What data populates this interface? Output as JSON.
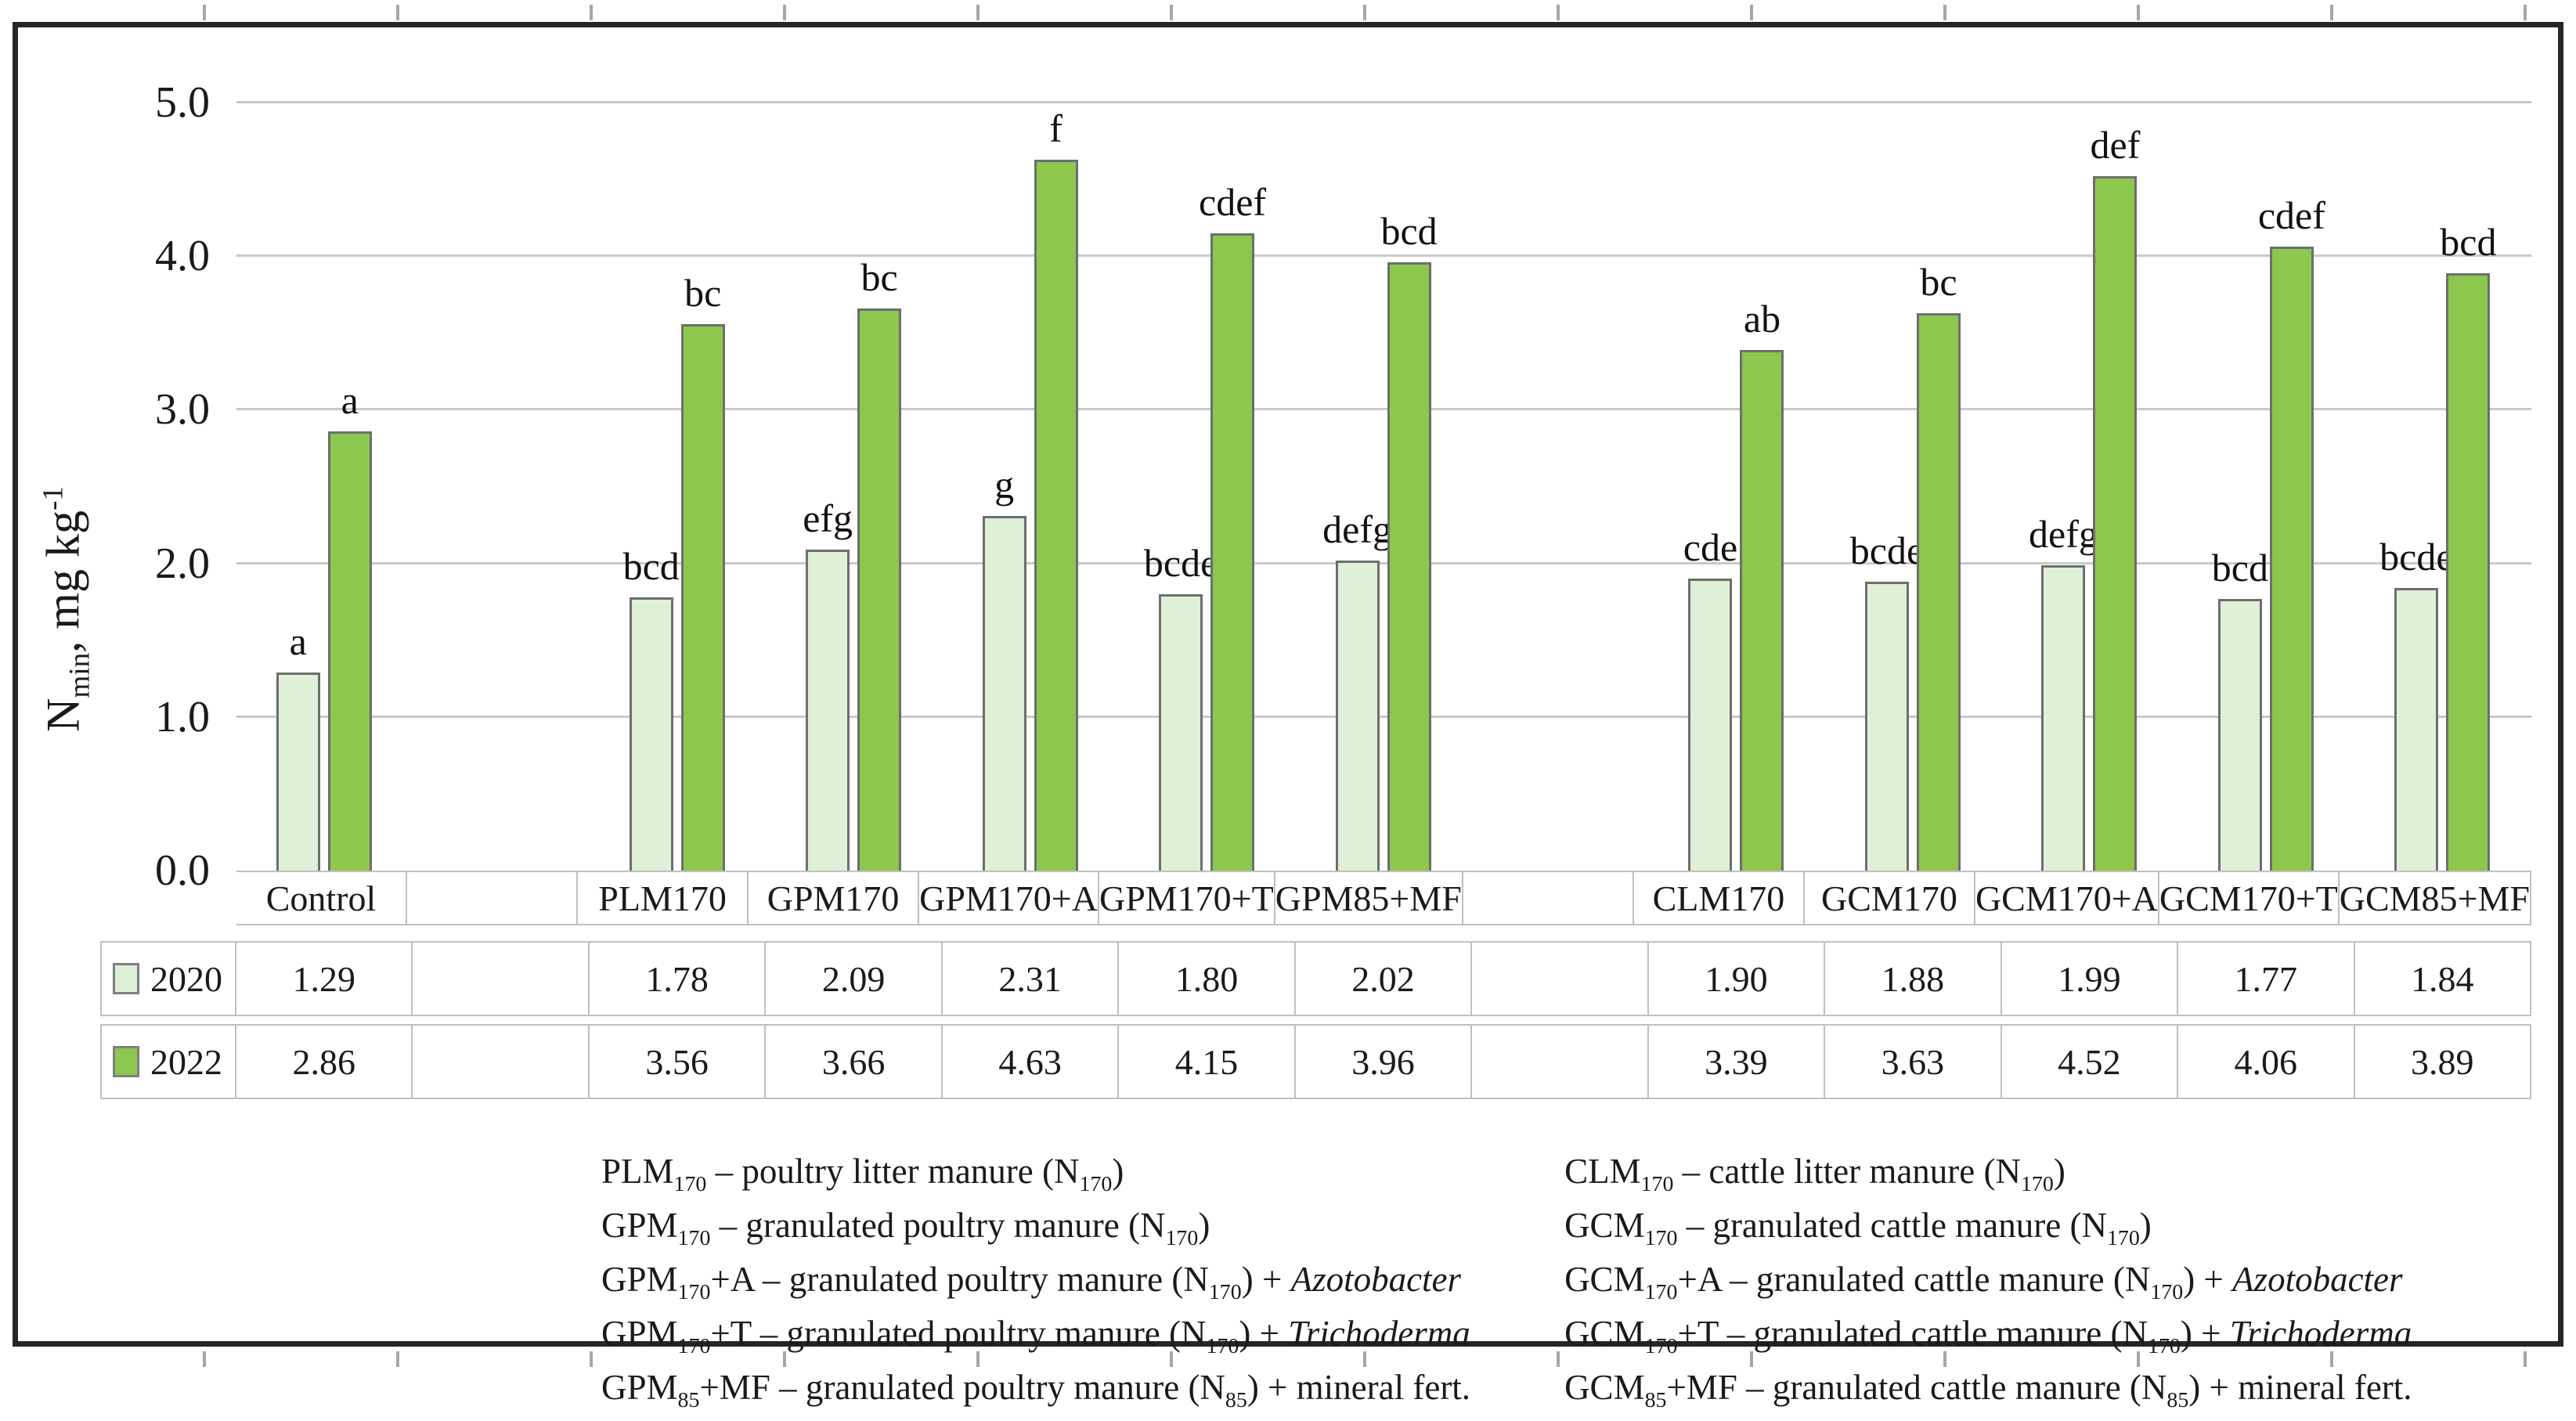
{
  "chart_data": {
    "type": "bar",
    "title": "",
    "ylabel": "Nmin, mg kg-1",
    "ylabel_segments": [
      {
        "t": "N"
      },
      {
        "t": "min",
        "sub": true
      },
      {
        "t": ", mg kg"
      },
      {
        "t": "-1",
        "sup": true
      }
    ],
    "ylim": [
      0,
      5
    ],
    "yticks": [
      0.0,
      1.0,
      2.0,
      3.0,
      4.0,
      5.0
    ],
    "grid": "horizontal",
    "legend_position": "table-left-column",
    "categories": [
      "Control",
      "PLM170",
      "GPM170",
      "GPM170+A",
      "GPM170+T",
      "GPM85+MF",
      "CLM170",
      "GCM170",
      "GCM170+A",
      "GCM170+T",
      "GCM85+MF"
    ],
    "slot_layout": [
      "Control",
      "",
      "PLM170",
      "GPM170",
      "GPM170+A",
      "GPM170+T",
      "GPM85+MF",
      "",
      "CLM170",
      "GCM170",
      "GCM170+A",
      "GCM170+T",
      "GCM85+MF"
    ],
    "series": [
      {
        "name": "2020",
        "color": "#DFF0D8",
        "values": [
          "1.29",
          "1.78",
          "2.09",
          "2.31",
          "1.80",
          "2.02",
          "1.90",
          "1.88",
          "1.99",
          "1.77",
          "1.84"
        ],
        "sig_letters": [
          "a",
          "bcd",
          "efg",
          "g",
          "bcde",
          "defg",
          "cde",
          "bcde",
          "defg",
          "bcd",
          "bcde"
        ]
      },
      {
        "name": "2022",
        "color": "#8CC74E",
        "values": [
          "2.86",
          "3.56",
          "3.66",
          "4.63",
          "4.15",
          "3.96",
          "3.39",
          "3.63",
          "4.52",
          "4.06",
          "3.89"
        ],
        "sig_letters": [
          "a",
          "bc",
          "bc",
          "f",
          "cdef",
          "bcd",
          "ab",
          "bc",
          "def",
          "cdef",
          "bcd"
        ]
      }
    ]
  },
  "colors": {
    "bar_2020": "#DFF0D8",
    "bar_2022": "#8CC74E",
    "bar_border": "#6E6E6E",
    "gridline": "#C9C9C9",
    "table_border": "#C0C0C0",
    "frame_border": "#262626",
    "ruler_tick": "#A6A6A6",
    "text": "#1A1A1A"
  },
  "footnotes": {
    "left": [
      {
        "segments": [
          {
            "t": "PLM"
          },
          {
            "t": "170",
            "sub": true
          },
          {
            "t": " – poultry litter manure (N"
          },
          {
            "t": "170",
            "sub": true
          },
          {
            "t": ")"
          }
        ]
      },
      {
        "segments": [
          {
            "t": "GPM"
          },
          {
            "t": "170",
            "sub": true
          },
          {
            "t": " – granulated poultry manure (N"
          },
          {
            "t": "170",
            "sub": true
          },
          {
            "t": ")"
          }
        ]
      },
      {
        "segments": [
          {
            "t": "GPM"
          },
          {
            "t": "170",
            "sub": true
          },
          {
            "t": "+A – granulated poultry manure (N"
          },
          {
            "t": "170",
            "sub": true
          },
          {
            "t": ") + "
          },
          {
            "t": "Azotobacter",
            "italic": true
          }
        ]
      },
      {
        "segments": [
          {
            "t": "GPM"
          },
          {
            "t": "170",
            "sub": true
          },
          {
            "t": "+T – granulated poultry manure (N"
          },
          {
            "t": "170",
            "sub": true
          },
          {
            "t": ") + "
          },
          {
            "t": "Trichoderma",
            "italic": true
          }
        ]
      },
      {
        "segments": [
          {
            "t": "GPM"
          },
          {
            "t": "85",
            "sub": true
          },
          {
            "t": "+MF – granulated poultry manure (N"
          },
          {
            "t": "85",
            "sub": true
          },
          {
            "t": ") + mineral fert."
          }
        ]
      }
    ],
    "right": [
      {
        "segments": [
          {
            "t": "CLM"
          },
          {
            "t": "170",
            "sub": true
          },
          {
            "t": " – cattle litter manure (N"
          },
          {
            "t": "170",
            "sub": true
          },
          {
            "t": ")"
          }
        ]
      },
      {
        "segments": [
          {
            "t": "GCM"
          },
          {
            "t": "170",
            "sub": true
          },
          {
            "t": " – granulated cattle manure (N"
          },
          {
            "t": "170",
            "sub": true
          },
          {
            "t": ")"
          }
        ]
      },
      {
        "segments": [
          {
            "t": "GCM"
          },
          {
            "t": "170",
            "sub": true
          },
          {
            "t": "+A – granulated cattle manure (N"
          },
          {
            "t": "170",
            "sub": true
          },
          {
            "t": ") + "
          },
          {
            "t": "Azotobacter",
            "italic": true
          }
        ]
      },
      {
        "segments": [
          {
            "t": "GCM"
          },
          {
            "t": "170",
            "sub": true
          },
          {
            "t": "+T – granulated cattle manure (N"
          },
          {
            "t": "170",
            "sub": true
          },
          {
            "t": ") + "
          },
          {
            "t": "Trichoderma",
            "italic": true
          }
        ]
      },
      {
        "segments": [
          {
            "t": "GCM"
          },
          {
            "t": "85",
            "sub": true
          },
          {
            "t": "+MF – granulated cattle manure (N"
          },
          {
            "t": "85",
            "sub": true
          },
          {
            "t": ") + mineral fert."
          }
        ]
      }
    ]
  }
}
